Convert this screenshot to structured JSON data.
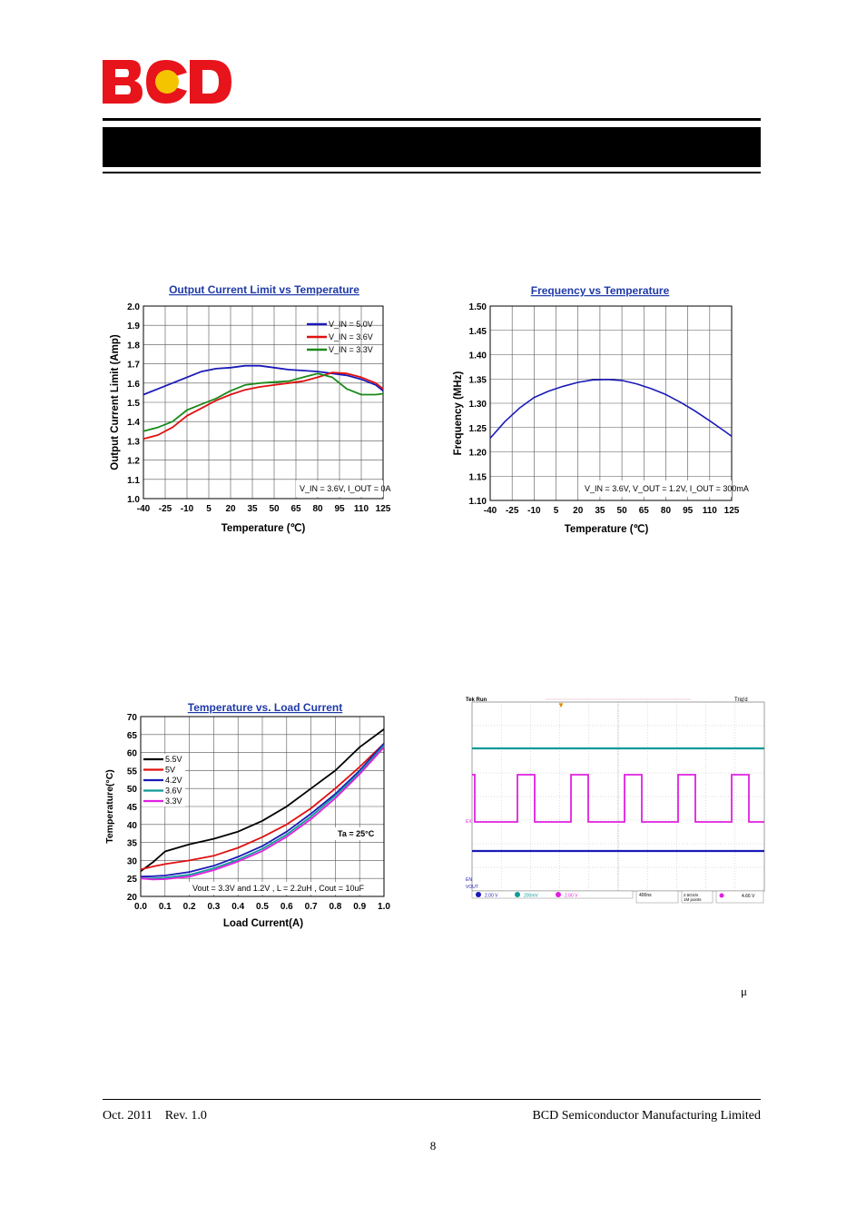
{
  "header": {
    "logo_text": "BCD"
  },
  "footer": {
    "left": "Oct. 2011    Rev. 1.0",
    "right": "BCD Semiconductor Manufacturing Limited",
    "page": "8",
    "mu_symbol": "μ"
  },
  "colors": {
    "blue": "#1a1ab8",
    "red": "#e01010",
    "green": "#1a8a1a",
    "black": "#000000",
    "teal": "#119a9a",
    "magenta": "#e020e0",
    "logo_red": "#e8141c",
    "logo_yellow": "#f5c400"
  },
  "chart_data": [
    {
      "type": "line",
      "title": "Output Current Limit vs Temperature",
      "xlabel": "Temperature (℃)",
      "ylabel": "Output Current Limit (Amp)",
      "x_ticks": [
        "-40",
        "-25",
        "-10",
        "5",
        "20",
        "35",
        "50",
        "65",
        "80",
        "95",
        "110",
        "125"
      ],
      "y_ticks": [
        "1.0",
        "1.1",
        "1.2",
        "1.3",
        "1.4",
        "1.5",
        "1.6",
        "1.7",
        "1.8",
        "1.9",
        "2.0"
      ],
      "xlim": [
        -40,
        125
      ],
      "ylim": [
        1.0,
        2.0
      ],
      "grid": true,
      "legend_position": "top-right",
      "note": "V_IN = 3.6V, I_OUT = 0A",
      "series": [
        {
          "name": "V_IN = 5.0V",
          "color": "#1a1ab8",
          "x": [
            -40,
            -30,
            -20,
            -10,
            0,
            10,
            20,
            30,
            40,
            50,
            60,
            70,
            80,
            90,
            100,
            110,
            120,
            125
          ],
          "y": [
            1.54,
            1.57,
            1.6,
            1.63,
            1.66,
            1.675,
            1.68,
            1.69,
            1.69,
            1.68,
            1.67,
            1.665,
            1.66,
            1.65,
            1.64,
            1.62,
            1.59,
            1.56
          ]
        },
        {
          "name": "V_IN = 3.6V",
          "color": "#e01010",
          "x": [
            -40,
            -30,
            -20,
            -10,
            0,
            10,
            20,
            30,
            40,
            50,
            60,
            70,
            80,
            90,
            100,
            110,
            120,
            125
          ],
          "y": [
            1.31,
            1.33,
            1.37,
            1.43,
            1.47,
            1.51,
            1.54,
            1.565,
            1.58,
            1.59,
            1.6,
            1.61,
            1.63,
            1.655,
            1.65,
            1.63,
            1.6,
            1.57
          ]
        },
        {
          "name": "V_IN = 3.3V",
          "color": "#1a8a1a",
          "x": [
            -40,
            -30,
            -20,
            -10,
            0,
            10,
            20,
            30,
            40,
            50,
            60,
            70,
            80,
            90,
            100,
            110,
            120,
            125
          ],
          "y": [
            1.35,
            1.37,
            1.4,
            1.46,
            1.49,
            1.52,
            1.56,
            1.59,
            1.6,
            1.605,
            1.61,
            1.63,
            1.65,
            1.63,
            1.57,
            1.54,
            1.54,
            1.545
          ]
        }
      ]
    },
    {
      "type": "line",
      "title": "Frequency vs Temperature",
      "xlabel": "Temperature (℃)",
      "ylabel": "Frequency (MHz)",
      "x_ticks": [
        "-40",
        "-25",
        "-10",
        "5",
        "20",
        "35",
        "50",
        "65",
        "80",
        "95",
        "110",
        "125"
      ],
      "y_ticks": [
        "1.10",
        "1.15",
        "1.20",
        "1.25",
        "1.30",
        "1.35",
        "1.40",
        "1.45",
        "1.50"
      ],
      "xlim": [
        -40,
        125
      ],
      "ylim": [
        1.1,
        1.5
      ],
      "grid": true,
      "note": "V_IN = 3.6V, V_OUT = 1.2V, I_OUT = 300mA",
      "series": [
        {
          "name": "",
          "color": "#1a1ab8",
          "x": [
            -40,
            -30,
            -20,
            -10,
            0,
            10,
            20,
            30,
            40,
            50,
            60,
            70,
            80,
            90,
            100,
            110,
            120,
            125
          ],
          "y": [
            1.228,
            1.262,
            1.29,
            1.312,
            1.325,
            1.335,
            1.343,
            1.348,
            1.349,
            1.347,
            1.34,
            1.33,
            1.318,
            1.302,
            1.284,
            1.264,
            1.243,
            1.232
          ]
        }
      ]
    },
    {
      "type": "line",
      "title": "Temperature vs. Load Current",
      "xlabel": "Load Current(A)",
      "ylabel": "Temperature(°C)",
      "x_ticks": [
        "0.0",
        "0.1",
        "0.2",
        "0.3",
        "0.4",
        "0.5",
        "0.6",
        "0.7",
        "0.8",
        "0.9",
        "1.0"
      ],
      "y_ticks": [
        "20",
        "25",
        "30",
        "35",
        "40",
        "45",
        "50",
        "55",
        "60",
        "65",
        "70"
      ],
      "xlim": [
        0,
        1.0
      ],
      "ylim": [
        20,
        70
      ],
      "grid": true,
      "legend_position": "top-left",
      "annotations": [
        "Ta = 25°C",
        "Vout = 3.3V and 1.2V , L = 2.2uH , Cout = 10uF"
      ],
      "series": [
        {
          "name": "5.5V",
          "color": "#000000",
          "x": [
            0.0,
            0.05,
            0.1,
            0.2,
            0.3,
            0.4,
            0.5,
            0.6,
            0.7,
            0.8,
            0.9,
            1.0
          ],
          "y": [
            27,
            29.5,
            32.5,
            34.5,
            36,
            38,
            41,
            45,
            50,
            55,
            61.5,
            66.5
          ]
        },
        {
          "name": "5V",
          "color": "#e01010",
          "x": [
            0.0,
            0.05,
            0.1,
            0.2,
            0.3,
            0.4,
            0.5,
            0.6,
            0.7,
            0.8,
            0.9,
            1.0
          ],
          "y": [
            27.5,
            28.3,
            29,
            30,
            31.3,
            33.5,
            36.5,
            40,
            44.5,
            50,
            56,
            62.5
          ]
        },
        {
          "name": "4.2V",
          "color": "#1a1ab8",
          "x": [
            0.0,
            0.05,
            0.1,
            0.2,
            0.3,
            0.4,
            0.5,
            0.6,
            0.7,
            0.8,
            0.9,
            1.0
          ],
          "y": [
            25.5,
            25.6,
            25.8,
            26.8,
            28.5,
            31,
            34,
            38,
            43,
            48.5,
            55,
            62.5
          ]
        },
        {
          "name": "3.6V",
          "color": "#119a9a",
          "x": [
            0.0,
            0.05,
            0.1,
            0.2,
            0.3,
            0.4,
            0.5,
            0.6,
            0.7,
            0.8,
            0.9,
            1.0
          ],
          "y": [
            25,
            25,
            25.2,
            26,
            27.8,
            30.2,
            33.2,
            37.2,
            42.2,
            48,
            54.5,
            62
          ]
        },
        {
          "name": "3.3V",
          "color": "#e020e0",
          "x": [
            0.0,
            0.05,
            0.1,
            0.2,
            0.3,
            0.4,
            0.5,
            0.6,
            0.7,
            0.8,
            0.9,
            1.0
          ],
          "y": [
            25,
            24.7,
            24.8,
            25.5,
            27.3,
            29.7,
            32.6,
            36.6,
            41.5,
            47.3,
            54,
            61.5
          ]
        }
      ]
    }
  ],
  "scope": {
    "brand": "Tek Run",
    "trigger": "Trig'd",
    "ch_labels": [
      "EN",
      "VOUT",
      "EX"
    ],
    "readouts": [
      "2.00 V",
      "200mV",
      "2.00 V"
    ],
    "timebase": "400ns",
    "sample": "2.5GS/s",
    "points": "1M points",
    "trigger_level": "4.66 V"
  }
}
